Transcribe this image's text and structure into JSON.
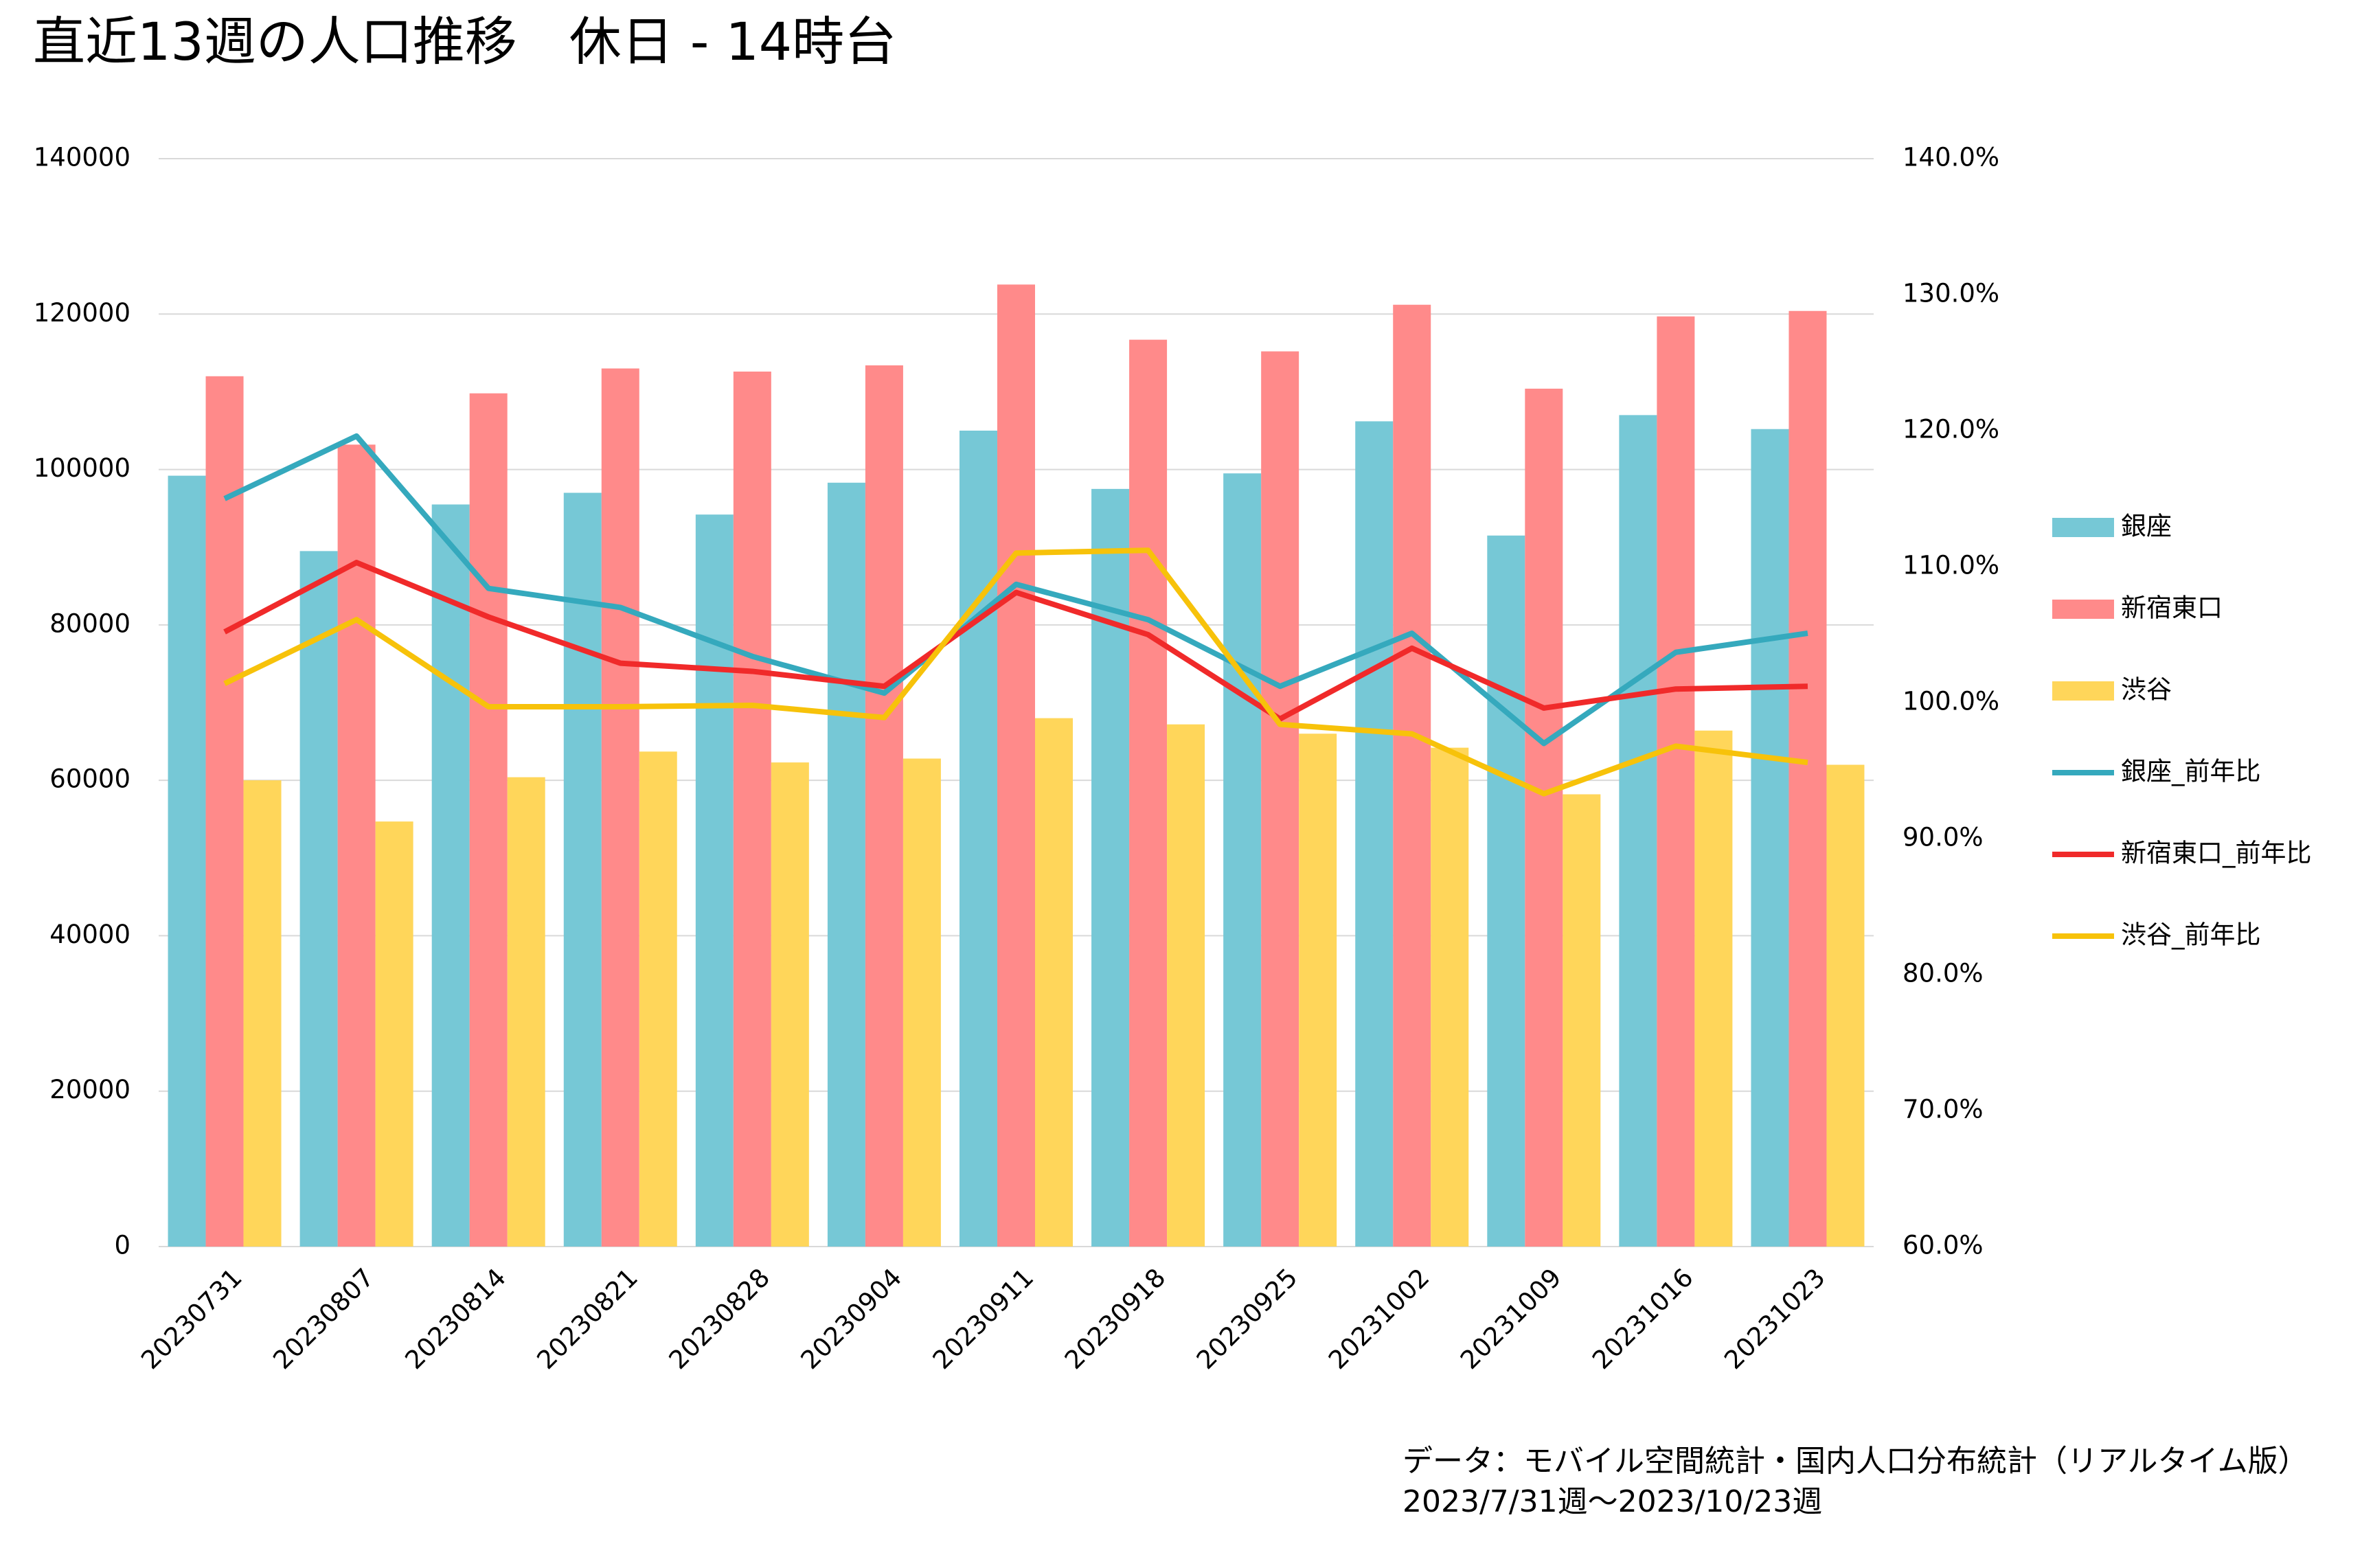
{
  "chart_data": {
    "type": "bar",
    "title": "直近13週の人口推移　休日 - 14時台",
    "categories": [
      "20230731",
      "20230807",
      "20230814",
      "20230821",
      "20230828",
      "20230904",
      "20230911",
      "20230918",
      "20230925",
      "20231002",
      "20231009",
      "20231016",
      "20231023"
    ],
    "series": [
      {
        "name": "銀座",
        "type": "bar",
        "color": "#76c8d6",
        "values": [
          99200,
          89500,
          95500,
          97000,
          94200,
          98300,
          105000,
          97500,
          99500,
          106200,
          91500,
          107000,
          105200
        ]
      },
      {
        "name": "新宿東口",
        "type": "bar",
        "color": "#ff8a8a",
        "values": [
          112000,
          103200,
          109800,
          113000,
          112600,
          113400,
          123800,
          116700,
          115200,
          121200,
          110400,
          119700,
          120400
        ]
      },
      {
        "name": "渋谷",
        "type": "bar",
        "color": "#ffd65a",
        "values": [
          60000,
          54700,
          60400,
          63700,
          62300,
          62800,
          68000,
          67200,
          66000,
          64200,
          58200,
          66400,
          62000
        ]
      },
      {
        "name": "銀座_前年比",
        "type": "line",
        "axis": "y2",
        "color": "#35a9bd",
        "values": [
          115.0,
          119.6,
          108.4,
          107.0,
          103.4,
          100.7,
          108.7,
          106.1,
          101.2,
          105.1,
          97.0,
          103.7,
          105.1
        ]
      },
      {
        "name": "新宿東口_前年比",
        "type": "line",
        "axis": "y2",
        "color": "#f02a2a",
        "values": [
          105.2,
          110.3,
          106.3,
          102.9,
          102.3,
          101.2,
          108.1,
          105.0,
          98.8,
          104.0,
          99.6,
          101.0,
          101.2
        ]
      },
      {
        "name": "渋谷_前年比",
        "type": "line",
        "axis": "y2",
        "color": "#f7c20a",
        "values": [
          101.4,
          106.1,
          99.7,
          99.7,
          99.8,
          98.9,
          111.0,
          111.2,
          98.4,
          97.7,
          93.3,
          96.8,
          95.6
        ]
      }
    ],
    "ylim": [
      0,
      140000
    ],
    "yticks": [
      0,
      20000,
      40000,
      60000,
      80000,
      100000,
      120000,
      140000
    ],
    "y2lim": [
      60,
      140
    ],
    "y2ticks": [
      {
        "value": 60,
        "label": "60.0%"
      },
      {
        "value": 70,
        "label": "70.0%"
      },
      {
        "value": 80,
        "label": "80.0%"
      },
      {
        "value": 90,
        "label": "90.0%"
      },
      {
        "value": 100,
        "label": "100.0%"
      },
      {
        "value": 110,
        "label": "110.0%"
      },
      {
        "value": 120,
        "label": "120.0%"
      },
      {
        "value": 130,
        "label": "130.0%"
      },
      {
        "value": 140,
        "label": "140.0%"
      }
    ],
    "grid": true,
    "legend": "right",
    "annotations": [
      "データ：モバイル空間統計・国内人口分布統計（リアルタイム版）",
      "2023/7/31週〜2023/10/23週"
    ]
  }
}
